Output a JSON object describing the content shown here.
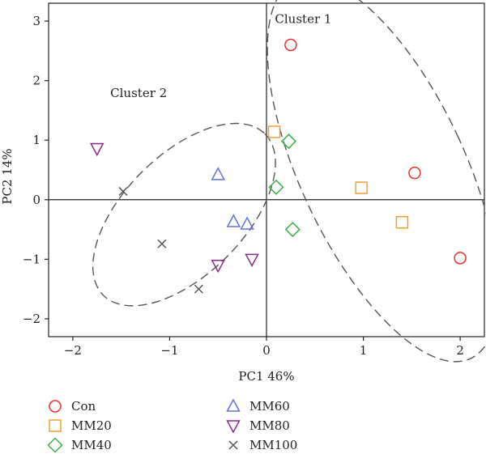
{
  "chart_data": {
    "type": "scatter",
    "xlabel": "PC1 46%",
    "ylabel": "PC2 14%",
    "xlim": [
      -2.25,
      2.25
    ],
    "ylim": [
      -2.3,
      3.3
    ],
    "xticks": [
      -2,
      -1,
      0,
      1,
      2
    ],
    "yticks": [
      -2,
      -1,
      0,
      1,
      2,
      3
    ],
    "grid": false,
    "zero_lines": true,
    "legend_position": "bottom",
    "series": [
      {
        "name": "Con",
        "marker": "circle",
        "color": "#e8302c",
        "points": [
          [
            0.25,
            2.6
          ],
          [
            1.53,
            0.45
          ],
          [
            2.0,
            -0.98
          ]
        ]
      },
      {
        "name": "MM20",
        "marker": "square",
        "color": "#f0a030",
        "points": [
          [
            0.08,
            1.14
          ],
          [
            0.98,
            0.2
          ],
          [
            1.4,
            -0.38
          ]
        ]
      },
      {
        "name": "MM40",
        "marker": "diamond",
        "color": "#3cb04a",
        "points": [
          [
            0.23,
            0.98
          ],
          [
            0.1,
            0.21
          ],
          [
            0.27,
            -0.5
          ]
        ]
      },
      {
        "name": "MM60",
        "marker": "triangle-up",
        "color": "#6070e0",
        "points": [
          [
            -0.5,
            0.42
          ],
          [
            -0.34,
            -0.37
          ],
          [
            -0.2,
            -0.41
          ]
        ]
      },
      {
        "name": "MM80",
        "marker": "triangle-down",
        "color": "#8a2a8a",
        "points": [
          [
            -1.75,
            0.86
          ],
          [
            -0.5,
            -1.1
          ],
          [
            -0.15,
            -1.0
          ]
        ]
      },
      {
        "name": "MM100",
        "marker": "x",
        "color": "#555555",
        "points": [
          [
            -1.48,
            0.14
          ],
          [
            -1.08,
            -0.74
          ],
          [
            -0.7,
            -1.5
          ]
        ]
      }
    ],
    "annotations": [
      {
        "text": "Cluster 1",
        "x": 0.38,
        "y": 2.97
      },
      {
        "text": "Cluster 2",
        "x": -1.32,
        "y": 1.72
      }
    ],
    "ellipses": [
      {
        "name": "Cluster 1",
        "cx": 1.2,
        "cy": 0.5,
        "rx": 0.85,
        "ry": 2.15,
        "angle_deg": -25
      },
      {
        "name": "Cluster 2",
        "cx": -0.85,
        "cy": -0.25,
        "rx": 1.18,
        "ry": 0.62,
        "angle_deg": -45
      }
    ]
  }
}
